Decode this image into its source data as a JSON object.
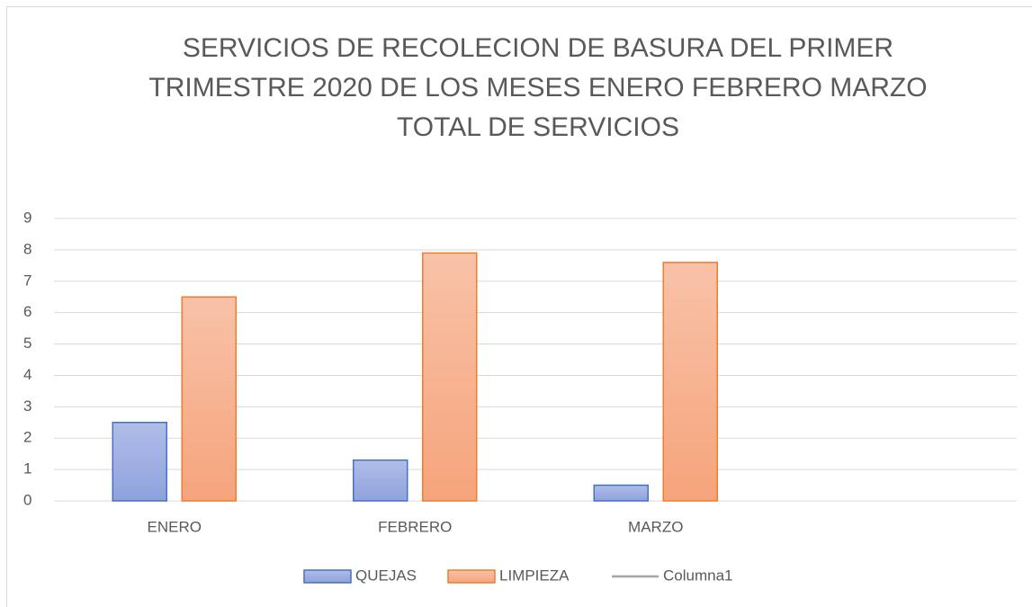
{
  "chart_data": {
    "type": "bar",
    "title": [
      "SERVICIOS DE RECOLECION DE BASURA  DEL PRIMER",
      "TRIMESTRE 2020 DE LOS MESES ENERO FEBRERO MARZO",
      "TOTAL DE SERVICIOS"
    ],
    "categories": [
      "ENERO",
      "FEBRERO",
      "MARZO",
      null
    ],
    "series": [
      {
        "name": "QUEJAS",
        "color": "#4472c4",
        "type": "bar",
        "values": [
          2.5,
          1.3,
          0.5,
          null
        ]
      },
      {
        "name": "LIMPIEZA",
        "color": "#ed7d31",
        "type": "bar",
        "values": [
          6.5,
          7.9,
          7.6,
          null
        ]
      },
      {
        "name": "Columna1",
        "color": "#a5a5a5",
        "type": "line",
        "values": [
          null,
          null,
          null,
          null
        ]
      }
    ],
    "ylim": [
      0,
      9
    ],
    "yticks": [
      0,
      1,
      2,
      3,
      4,
      5,
      6,
      7,
      8,
      9
    ],
    "grid": true,
    "legend": "bottom"
  }
}
